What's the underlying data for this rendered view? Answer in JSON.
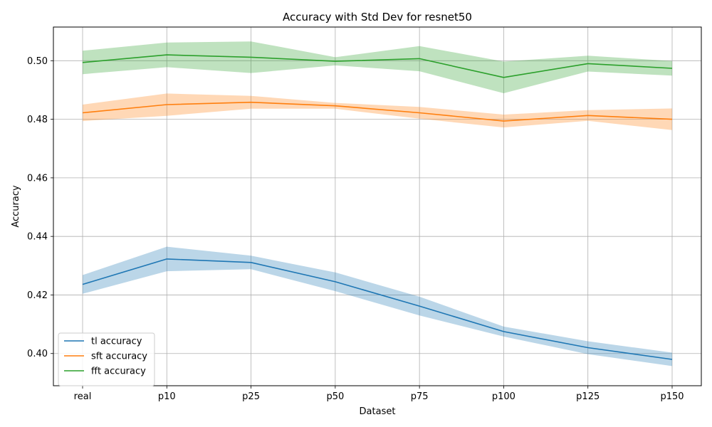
{
  "chart_data": {
    "type": "line",
    "title": "Accuracy with Std Dev for resnet50",
    "xlabel": "Dataset",
    "ylabel": "Accuracy",
    "categories": [
      "real",
      "p10",
      "p25",
      "p50",
      "p75",
      "p100",
      "p125",
      "p150"
    ],
    "ylim": [
      0.389,
      0.5115
    ],
    "yticks": [
      0.4,
      0.42,
      0.44,
      0.46,
      0.48,
      0.5
    ],
    "ytick_labels": [
      "0.40",
      "0.42",
      "0.44",
      "0.46",
      "0.48",
      "0.50"
    ],
    "grid": true,
    "legend_position": "lower-left",
    "series": [
      {
        "name": "tl accuracy",
        "color": "#1f77b4",
        "band_color": "#1f77b4",
        "values": [
          0.4236,
          0.4323,
          0.4311,
          0.4245,
          0.4162,
          0.4075,
          0.402,
          0.398
        ],
        "std": [
          0.0032,
          0.0042,
          0.0023,
          0.0032,
          0.0032,
          0.0017,
          0.0022,
          0.0023
        ]
      },
      {
        "name": "sft accuracy",
        "color": "#ff7f0e",
        "band_color": "#ff7f0e",
        "values": [
          0.4822,
          0.485,
          0.4858,
          0.4846,
          0.4822,
          0.4794,
          0.4813,
          0.48
        ],
        "std": [
          0.0028,
          0.0038,
          0.0022,
          0.001,
          0.002,
          0.0022,
          0.0018,
          0.0037
        ]
      },
      {
        "name": "fft accuracy",
        "color": "#2ca02c",
        "band_color": "#2ca02c",
        "values": [
          0.4994,
          0.502,
          0.5012,
          0.4998,
          0.5007,
          0.4943,
          0.499,
          0.4974
        ],
        "std": [
          0.004,
          0.0042,
          0.0054,
          0.0014,
          0.0043,
          0.0054,
          0.0027,
          0.0025
        ]
      }
    ]
  }
}
